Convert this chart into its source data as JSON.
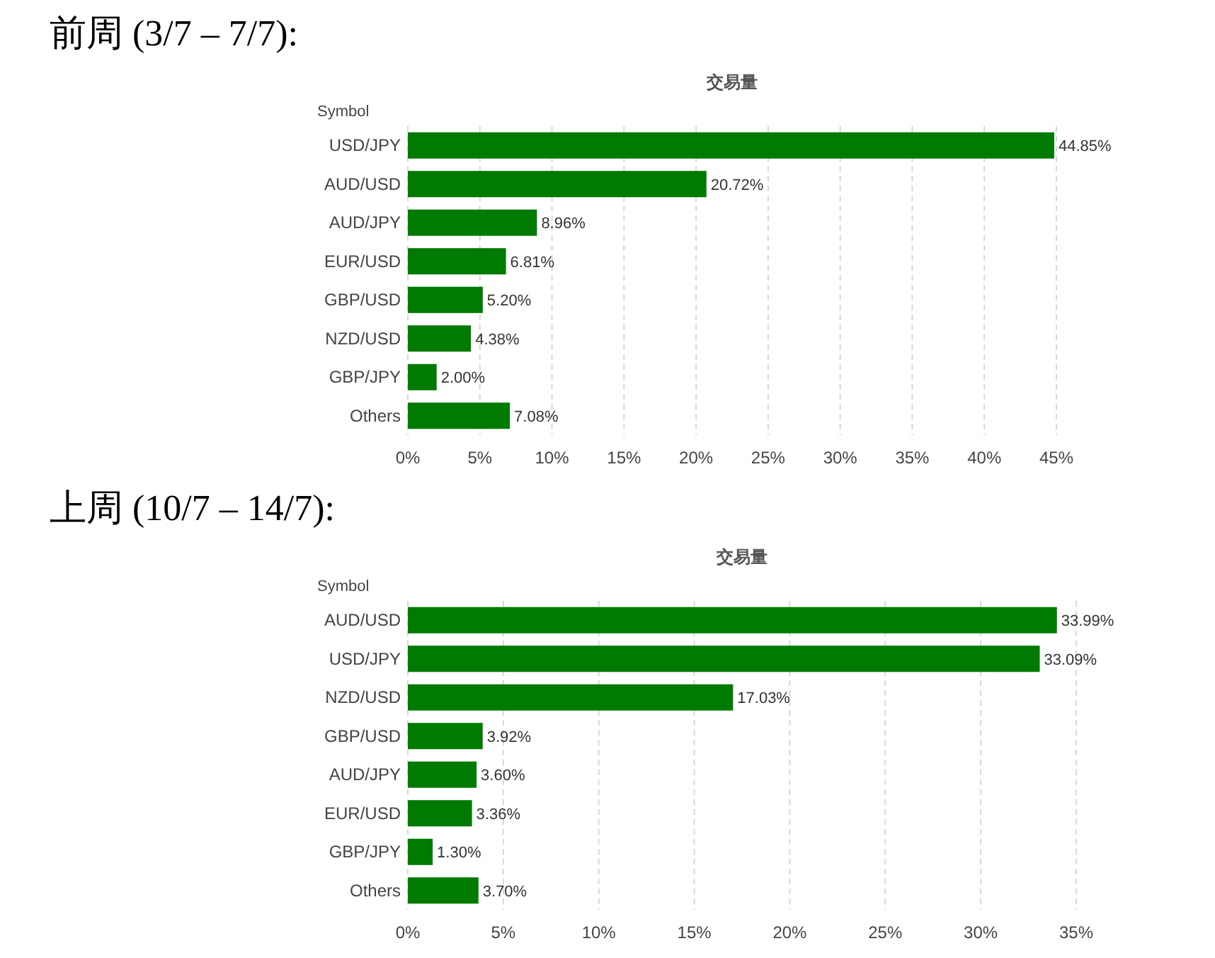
{
  "chart_data": [
    {
      "type": "bar",
      "orientation": "horizontal",
      "title": "前周 (3/7 – 7/7):",
      "subtitle": "交易量",
      "ylabel": "Symbol",
      "categories": [
        "USD/JPY",
        "AUD/USD",
        "AUD/JPY",
        "EUR/USD",
        "GBP/USD",
        "NZD/USD",
        "GBP/JPY",
        "Others"
      ],
      "values": [
        44.85,
        20.72,
        8.96,
        6.81,
        5.2,
        4.38,
        2.0,
        7.08
      ],
      "value_labels": [
        "44.85%",
        "20.72%",
        "8.96%",
        "6.81%",
        "5.20%",
        "4.38%",
        "2.00%",
        "7.08%"
      ],
      "color": "#007a00",
      "xlim": [
        0,
        45
      ],
      "xticks": [
        {
          "value": 0,
          "label": "0%"
        },
        {
          "value": 5,
          "label": "5%"
        },
        {
          "value": 10,
          "label": "10%"
        },
        {
          "value": 15,
          "label": "15%"
        },
        {
          "value": 20,
          "label": "20%"
        },
        {
          "value": 25,
          "label": "25%"
        },
        {
          "value": 30,
          "label": "30%"
        },
        {
          "value": 35,
          "label": "35%"
        },
        {
          "value": 40,
          "label": "40%"
        },
        {
          "value": 45,
          "label": "45%"
        }
      ],
      "grid": "x"
    },
    {
      "type": "bar",
      "orientation": "horizontal",
      "title": "上周 (10/7 – 14/7):",
      "subtitle": "交易量",
      "ylabel": "Symbol",
      "categories": [
        "AUD/USD",
        "USD/JPY",
        "NZD/USD",
        "GBP/USD",
        "AUD/JPY",
        "EUR/USD",
        "GBP/JPY",
        "Others"
      ],
      "values": [
        33.99,
        33.09,
        17.03,
        3.92,
        3.6,
        3.36,
        1.3,
        3.7
      ],
      "value_labels": [
        "33.99%",
        "33.09%",
        "17.03%",
        "3.92%",
        "3.60%",
        "3.36%",
        "1.30%",
        "3.70%"
      ],
      "color": "#007a00",
      "xlim": [
        0,
        35
      ],
      "xticks": [
        {
          "value": 0,
          "label": "0%"
        },
        {
          "value": 5,
          "label": "5%"
        },
        {
          "value": 10,
          "label": "10%"
        },
        {
          "value": 15,
          "label": "15%"
        },
        {
          "value": 20,
          "label": "20%"
        },
        {
          "value": 25,
          "label": "25%"
        },
        {
          "value": 30,
          "label": "30%"
        },
        {
          "value": 35,
          "label": "35%"
        }
      ],
      "grid": "x"
    }
  ]
}
